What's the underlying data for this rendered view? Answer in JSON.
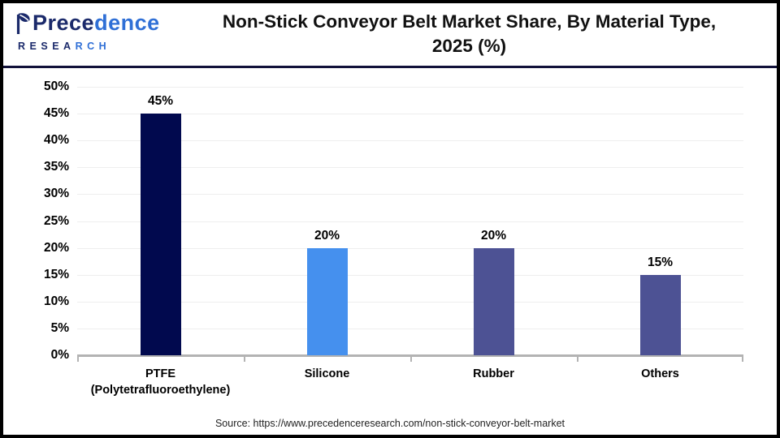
{
  "header": {
    "logo": {
      "name_part1": "Prece",
      "name_part2": "dence",
      "research_part1": "RESEA",
      "research_part2": "RCH",
      "leaf_icon": "leaf-icon",
      "color_dark": "#1b2a6b",
      "color_blue": "#2f6fd6"
    },
    "title_line1": "Non-Stick Conveyor Belt Market Share, By Material Type,",
    "title_line2": "2025 (%)"
  },
  "chart_data": {
    "type": "bar",
    "title": "Non-Stick Conveyor Belt Market Share, By Material Type, 2025 (%)",
    "categories": [
      "PTFE (Polytetrafluoroethylene)",
      "Silicone",
      "Rubber",
      "Others"
    ],
    "category_label_lines": [
      [
        "PTFE",
        "(Polytetrafluoroethylene)"
      ],
      [
        "Silicone"
      ],
      [
        "Rubber"
      ],
      [
        "Others"
      ]
    ],
    "values": [
      45,
      20,
      20,
      15
    ],
    "value_labels": [
      "45%",
      "20%",
      "20%",
      "15%"
    ],
    "bar_colors": [
      "#01094e",
      "#4590ee",
      "#4d5294",
      "#4d5294"
    ],
    "xlabel": "",
    "ylabel": "",
    "ylim": [
      0,
      50
    ],
    "ytick_step": 5,
    "ytick_suffix": "%",
    "grid": true,
    "legend": false,
    "axis_color": "#b3b3b3",
    "gridline_color": "#eeeeee"
  },
  "source": {
    "text": "Source: https://www.precedenceresearch.com/non-stick-conveyor-belt-market"
  }
}
